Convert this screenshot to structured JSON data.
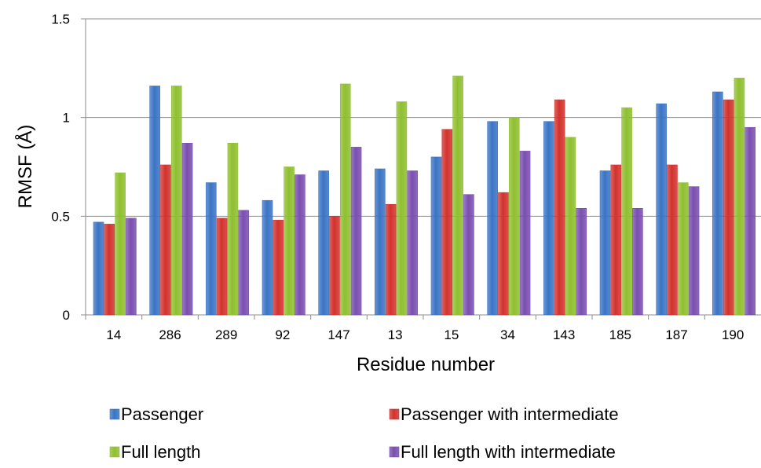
{
  "chart_data": {
    "type": "bar",
    "title": "",
    "xlabel": "Residue number",
    "ylabel": "RMSF (Å)",
    "ylim": [
      0,
      1.5
    ],
    "yticks": [
      "0",
      "0.5",
      "1",
      "1.5"
    ],
    "grid": true,
    "legend_position": "bottom",
    "categories": [
      "14",
      "286",
      "289",
      "92",
      "147",
      "13",
      "15",
      "34",
      "143",
      "185",
      "187",
      "190"
    ],
    "series": [
      {
        "name": "Passenger",
        "color": "#3b74c5",
        "values": [
          0.47,
          1.16,
          0.67,
          0.58,
          0.73,
          0.74,
          0.8,
          0.98,
          0.98,
          0.73,
          1.07,
          1.13
        ]
      },
      {
        "name": "Passenger with intermediate",
        "color": "#d2322d",
        "values": [
          0.46,
          0.76,
          0.49,
          0.48,
          0.5,
          0.56,
          0.94,
          0.62,
          1.09,
          0.76,
          0.76,
          1.09
        ]
      },
      {
        "name": "Full length",
        "color": "#8fbf2f",
        "values": [
          0.72,
          1.16,
          0.87,
          0.75,
          1.17,
          1.08,
          1.21,
          1.0,
          0.9,
          1.05,
          0.67,
          1.2
        ]
      },
      {
        "name": "Full length with intermediate",
        "color": "#7a4fb0",
        "values": [
          0.49,
          0.87,
          0.53,
          0.71,
          0.85,
          0.73,
          0.61,
          0.83,
          0.54,
          0.54,
          0.65,
          0.95
        ]
      }
    ]
  }
}
